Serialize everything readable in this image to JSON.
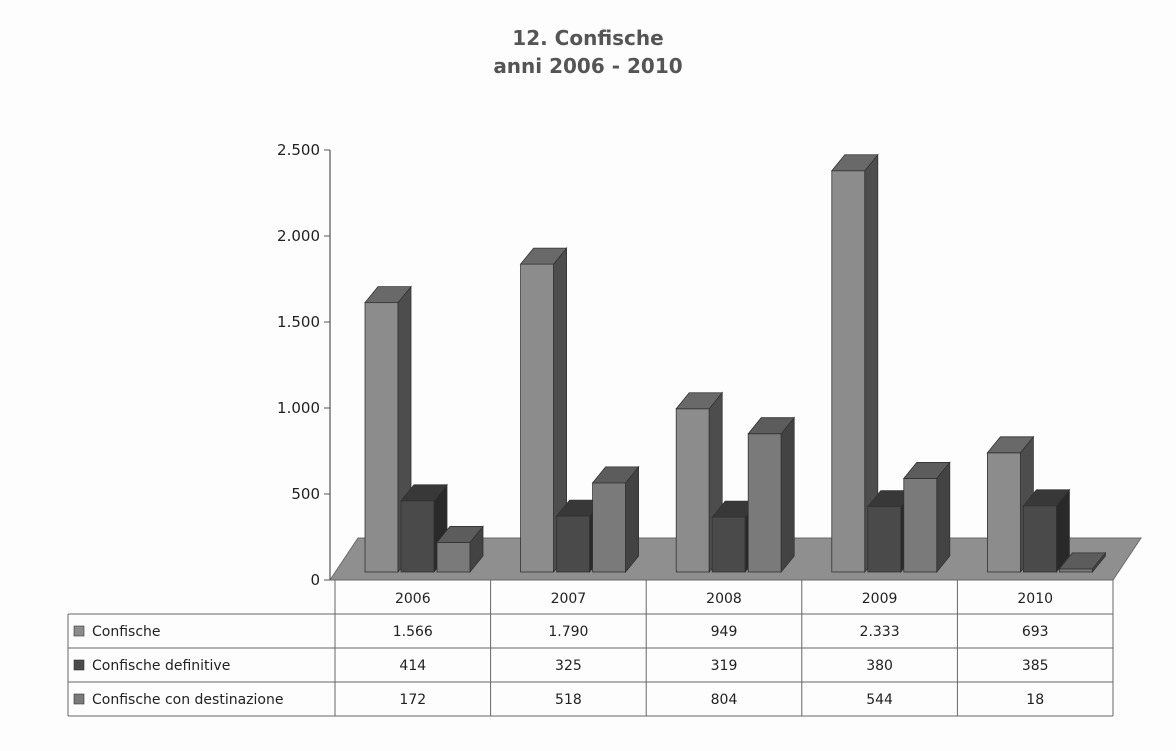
{
  "chart_data": {
    "type": "bar",
    "title": "12. Confische",
    "subtitle": "anni  2006 - 2010",
    "categories": [
      "2006",
      "2007",
      "2008",
      "2009",
      "2010"
    ],
    "series": [
      {
        "name": "Confische",
        "values": [
          1566,
          1790,
          949,
          2333,
          693
        ],
        "labels": [
          "1.566",
          "1.790",
          "949",
          "2.333",
          "693"
        ],
        "color": "#8c8c8c"
      },
      {
        "name": "Confische definitive",
        "values": [
          414,
          325,
          319,
          380,
          385
        ],
        "labels": [
          "414",
          "325",
          "319",
          "380",
          "385"
        ],
        "color": "#4a4a4a"
      },
      {
        "name": "Confische con destinazione",
        "values": [
          172,
          518,
          804,
          544,
          18
        ],
        "labels": [
          "172",
          "518",
          "804",
          "544",
          "18"
        ],
        "color": "#7a7a7a"
      }
    ],
    "yticks": [
      0,
      500,
      1000,
      1500,
      2000,
      2500
    ],
    "ytick_labels": [
      "0",
      "500",
      "1.000",
      "1.500",
      "2.000",
      "2.500"
    ],
    "ylim": [
      0,
      2500
    ],
    "grid": false,
    "data_table": true,
    "three_d": true
  }
}
